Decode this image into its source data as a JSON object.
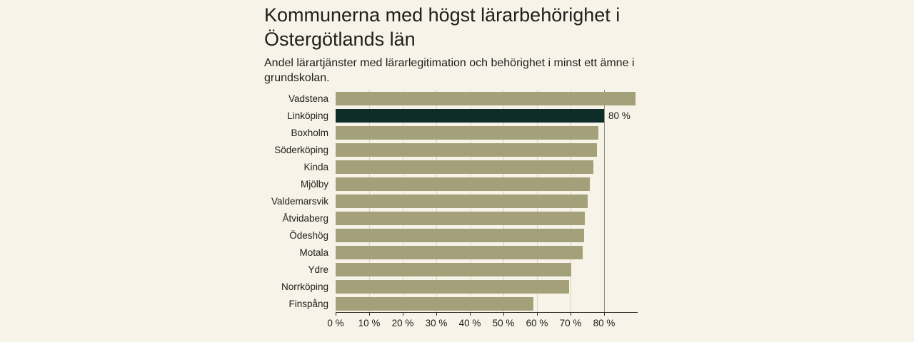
{
  "header": {
    "title": "Kommunerna med högst lärarbehörighet i Östergötlands län",
    "subtitle": "Andel lärartjänster med lärarlegitimation och behörighet i minst ett ämne i grundskolan."
  },
  "chart_data": {
    "type": "bar",
    "orientation": "horizontal",
    "title": "Kommunerna med högst lärarbehörighet i Östergötlands län",
    "subtitle": "Andel lärartjänster med lärarlegitimation och behörighet i minst ett ämne i grundskolan.",
    "categories": [
      "Vadstena",
      "Linköping",
      "Boxholm",
      "Söderköping",
      "Kinda",
      "Mjölby",
      "Valdemarsvik",
      "Åtvidaberg",
      "Ödeshög",
      "Motala",
      "Ydre",
      "Norrköping",
      "Finspång"
    ],
    "values": [
      89.4,
      80,
      78.4,
      77.9,
      76.8,
      75.7,
      75.1,
      74.3,
      74.0,
      73.6,
      70.2,
      69.6,
      58.9
    ],
    "unit": "%",
    "highlight": {
      "index": 1,
      "category": "Linköping",
      "value_label": "80 %"
    },
    "xlim": [
      0,
      90
    ],
    "ticks": [
      {
        "value": 0,
        "label": "0 %"
      },
      {
        "value": 10,
        "label": "10 %"
      },
      {
        "value": 20,
        "label": "20 %"
      },
      {
        "value": 30,
        "label": "30 %"
      },
      {
        "value": 40,
        "label": "40 %"
      },
      {
        "value": 50,
        "label": "50 %"
      },
      {
        "value": 60,
        "label": "60 %"
      },
      {
        "value": 70,
        "label": "70 %"
      },
      {
        "value": 80,
        "label": "80 %"
      }
    ],
    "gridlines": [
      10,
      20,
      30,
      40,
      50,
      60,
      70,
      80
    ],
    "reference_line": 80,
    "grid": true,
    "legend": "none",
    "colors": {
      "background": "#f7f3e8",
      "bar": "#a4a17a",
      "highlight_bar": "#0e2c28",
      "text": "#20201c",
      "gridline": "#d8d4c6",
      "reference_line": "#8c8a7e",
      "axis": "#2a2a26"
    }
  }
}
